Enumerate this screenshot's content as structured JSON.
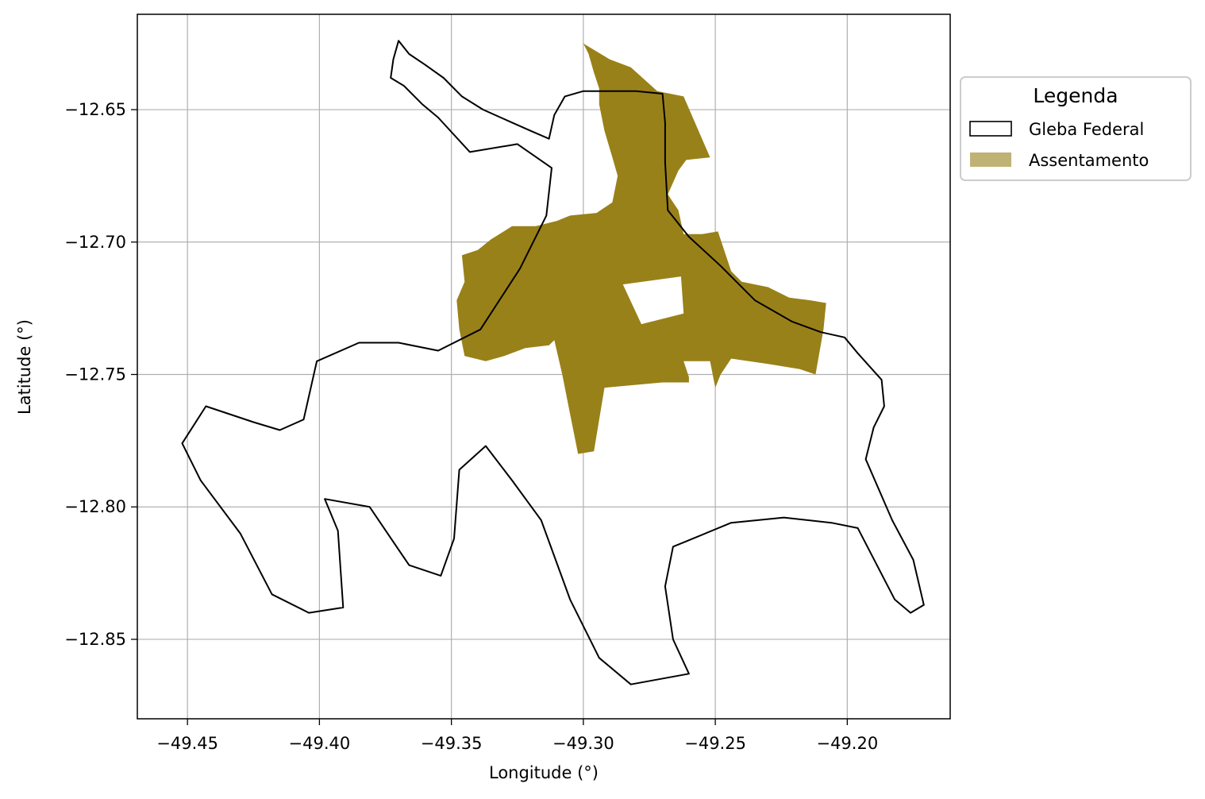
{
  "chart_data": {
    "type": "map",
    "xlabel": "Longitude (°)",
    "ylabel": "Latitude (°)",
    "xlim": [
      -49.469,
      -49.161
    ],
    "ylim": [
      -12.88,
      -12.614
    ],
    "x_ticks": [
      -49.45,
      -49.4,
      -49.35,
      -49.3,
      -49.25,
      -49.2
    ],
    "y_ticks": [
      -12.65,
      -12.7,
      -12.75,
      -12.8,
      -12.85
    ],
    "x_tick_labels": [
      "−49.45",
      "−49.40",
      "−49.35",
      "−49.30",
      "−49.25",
      "−49.20"
    ],
    "y_tick_labels": [
      "−12.65",
      "−12.70",
      "−12.75",
      "−12.80",
      "−12.85"
    ],
    "grid": true,
    "legend": {
      "title": "Legenda",
      "placement": "outside-upper-right",
      "entries": [
        {
          "label": "Gleba Federal",
          "style": "outline",
          "edge_color": "#000000",
          "fill": "none"
        },
        {
          "label": "Assentamento",
          "style": "fill",
          "fill": "#bfb274"
        }
      ]
    },
    "layers": [
      {
        "name": "Assentamento",
        "fill": "#998119",
        "polygons": [
          {
            "outer": [
              [
                -49.302,
                -12.78
              ],
              [
                -49.296,
                -12.779
              ],
              [
                -49.292,
                -12.755
              ],
              [
                -49.27,
                -12.753
              ],
              [
                -49.26,
                -12.753
              ],
              [
                -49.26,
                -12.751
              ],
              [
                -49.262,
                -12.745
              ],
              [
                -49.252,
                -12.745
              ],
              [
                -49.25,
                -12.755
              ],
              [
                -49.248,
                -12.75
              ],
              [
                -49.244,
                -12.744
              ],
              [
                -49.23,
                -12.746
              ],
              [
                -49.218,
                -12.748
              ],
              [
                -49.212,
                -12.75
              ],
              [
                -49.209,
                -12.733
              ],
              [
                -49.208,
                -12.723
              ],
              [
                -49.214,
                -12.722
              ],
              [
                -49.222,
                -12.721
              ],
              [
                -49.23,
                -12.717
              ],
              [
                -49.24,
                -12.715
              ],
              [
                -49.244,
                -12.711
              ],
              [
                -49.246,
                -12.705
              ],
              [
                -49.249,
                -12.696
              ],
              [
                -49.255,
                -12.697
              ],
              [
                -49.262,
                -12.697
              ],
              [
                -49.264,
                -12.688
              ],
              [
                -49.268,
                -12.682
              ],
              [
                -49.264,
                -12.673
              ],
              [
                -49.261,
                -12.669
              ],
              [
                -49.252,
                -12.668
              ],
              [
                -49.262,
                -12.645
              ],
              [
                -49.272,
                -12.643
              ],
              [
                -49.282,
                -12.634
              ],
              [
                -49.29,
                -12.631
              ],
              [
                -49.295,
                -12.628
              ],
              [
                -49.3,
                -12.625
              ],
              [
                -49.298,
                -12.629
              ],
              [
                -49.296,
                -12.636
              ],
              [
                -49.294,
                -12.642
              ],
              [
                -49.294,
                -12.648
              ],
              [
                -49.292,
                -12.658
              ],
              [
                -49.289,
                -12.668
              ],
              [
                -49.287,
                -12.675
              ],
              [
                -49.289,
                -12.685
              ],
              [
                -49.295,
                -12.689
              ],
              [
                -49.305,
                -12.69
              ],
              [
                -49.31,
                -12.692
              ],
              [
                -49.318,
                -12.694
              ],
              [
                -49.327,
                -12.694
              ],
              [
                -49.335,
                -12.699
              ],
              [
                -49.34,
                -12.703
              ],
              [
                -49.346,
                -12.705
              ],
              [
                -49.345,
                -12.715
              ],
              [
                -49.348,
                -12.722
              ],
              [
                -49.347,
                -12.733
              ],
              [
                -49.345,
                -12.743
              ],
              [
                -49.337,
                -12.745
              ],
              [
                -49.33,
                -12.743
              ],
              [
                -49.322,
                -12.74
              ],
              [
                -49.313,
                -12.739
              ],
              [
                -49.311,
                -12.737
              ],
              [
                -49.308,
                -12.75
              ],
              [
                -49.305,
                -12.765
              ]
            ],
            "holes": [
              [
                [
                  -49.285,
                  -12.716
                ],
                [
                  -49.263,
                  -12.713
                ],
                [
                  -49.262,
                  -12.727
                ],
                [
                  -49.278,
                  -12.731
                ]
              ]
            ]
          }
        ]
      },
      {
        "name": "Gleba Federal",
        "edge": "#000000",
        "polygons": [
          {
            "outer": [
              [
                -49.373,
                -12.638
              ],
              [
                -49.372,
                -12.631
              ],
              [
                -49.37,
                -12.624
              ],
              [
                -49.366,
                -12.629
              ],
              [
                -49.36,
                -12.633
              ],
              [
                -49.353,
                -12.638
              ],
              [
                -49.346,
                -12.645
              ],
              [
                -49.338,
                -12.65
              ],
              [
                -49.329,
                -12.654
              ],
              [
                -49.32,
                -12.658
              ],
              [
                -49.313,
                -12.661
              ],
              [
                -49.311,
                -12.652
              ],
              [
                -49.307,
                -12.645
              ],
              [
                -49.3,
                -12.643
              ],
              [
                -49.29,
                -12.643
              ],
              [
                -49.28,
                -12.643
              ],
              [
                -49.27,
                -12.644
              ],
              [
                -49.269,
                -12.655
              ],
              [
                -49.269,
                -12.67
              ],
              [
                -49.268,
                -12.688
              ],
              [
                -49.26,
                -12.698
              ],
              [
                -49.248,
                -12.709
              ],
              [
                -49.235,
                -12.722
              ],
              [
                -49.221,
                -12.73
              ],
              [
                -49.21,
                -12.734
              ],
              [
                -49.201,
                -12.736
              ],
              [
                -49.196,
                -12.742
              ],
              [
                -49.187,
                -12.752
              ],
              [
                -49.186,
                -12.762
              ],
              [
                -49.19,
                -12.77
              ],
              [
                -49.193,
                -12.782
              ],
              [
                -49.183,
                -12.805
              ],
              [
                -49.175,
                -12.82
              ],
              [
                -49.171,
                -12.837
              ],
              [
                -49.176,
                -12.84
              ],
              [
                -49.182,
                -12.835
              ],
              [
                -49.196,
                -12.808
              ],
              [
                -49.206,
                -12.806
              ],
              [
                -49.224,
                -12.804
              ],
              [
                -49.244,
                -12.806
              ],
              [
                -49.261,
                -12.813
              ],
              [
                -49.266,
                -12.815
              ],
              [
                -49.269,
                -12.83
              ],
              [
                -49.266,
                -12.85
              ],
              [
                -49.26,
                -12.863
              ],
              [
                -49.282,
                -12.867
              ],
              [
                -49.294,
                -12.857
              ],
              [
                -49.305,
                -12.835
              ],
              [
                -49.316,
                -12.805
              ],
              [
                -49.327,
                -12.79
              ],
              [
                -49.337,
                -12.777
              ],
              [
                -49.347,
                -12.786
              ],
              [
                -49.349,
                -12.812
              ],
              [
                -49.354,
                -12.826
              ],
              [
                -49.366,
                -12.822
              ],
              [
                -49.381,
                -12.8
              ],
              [
                -49.398,
                -12.797
              ],
              [
                -49.393,
                -12.809
              ],
              [
                -49.391,
                -12.838
              ],
              [
                -49.404,
                -12.84
              ],
              [
                -49.418,
                -12.833
              ],
              [
                -49.43,
                -12.81
              ],
              [
                -49.445,
                -12.79
              ],
              [
                -49.452,
                -12.776
              ],
              [
                -49.443,
                -12.762
              ],
              [
                -49.425,
                -12.768
              ],
              [
                -49.415,
                -12.771
              ],
              [
                -49.406,
                -12.767
              ],
              [
                -49.401,
                -12.745
              ],
              [
                -49.385,
                -12.738
              ],
              [
                -49.37,
                -12.738
              ],
              [
                -49.355,
                -12.741
              ],
              [
                -49.339,
                -12.733
              ],
              [
                -49.324,
                -12.71
              ],
              [
                -49.314,
                -12.69
              ],
              [
                -49.312,
                -12.672
              ],
              [
                -49.325,
                -12.663
              ],
              [
                -49.343,
                -12.666
              ],
              [
                -49.355,
                -12.653
              ],
              [
                -49.361,
                -12.648
              ],
              [
                -49.368,
                -12.641
              ]
            ]
          }
        ]
      }
    ]
  }
}
